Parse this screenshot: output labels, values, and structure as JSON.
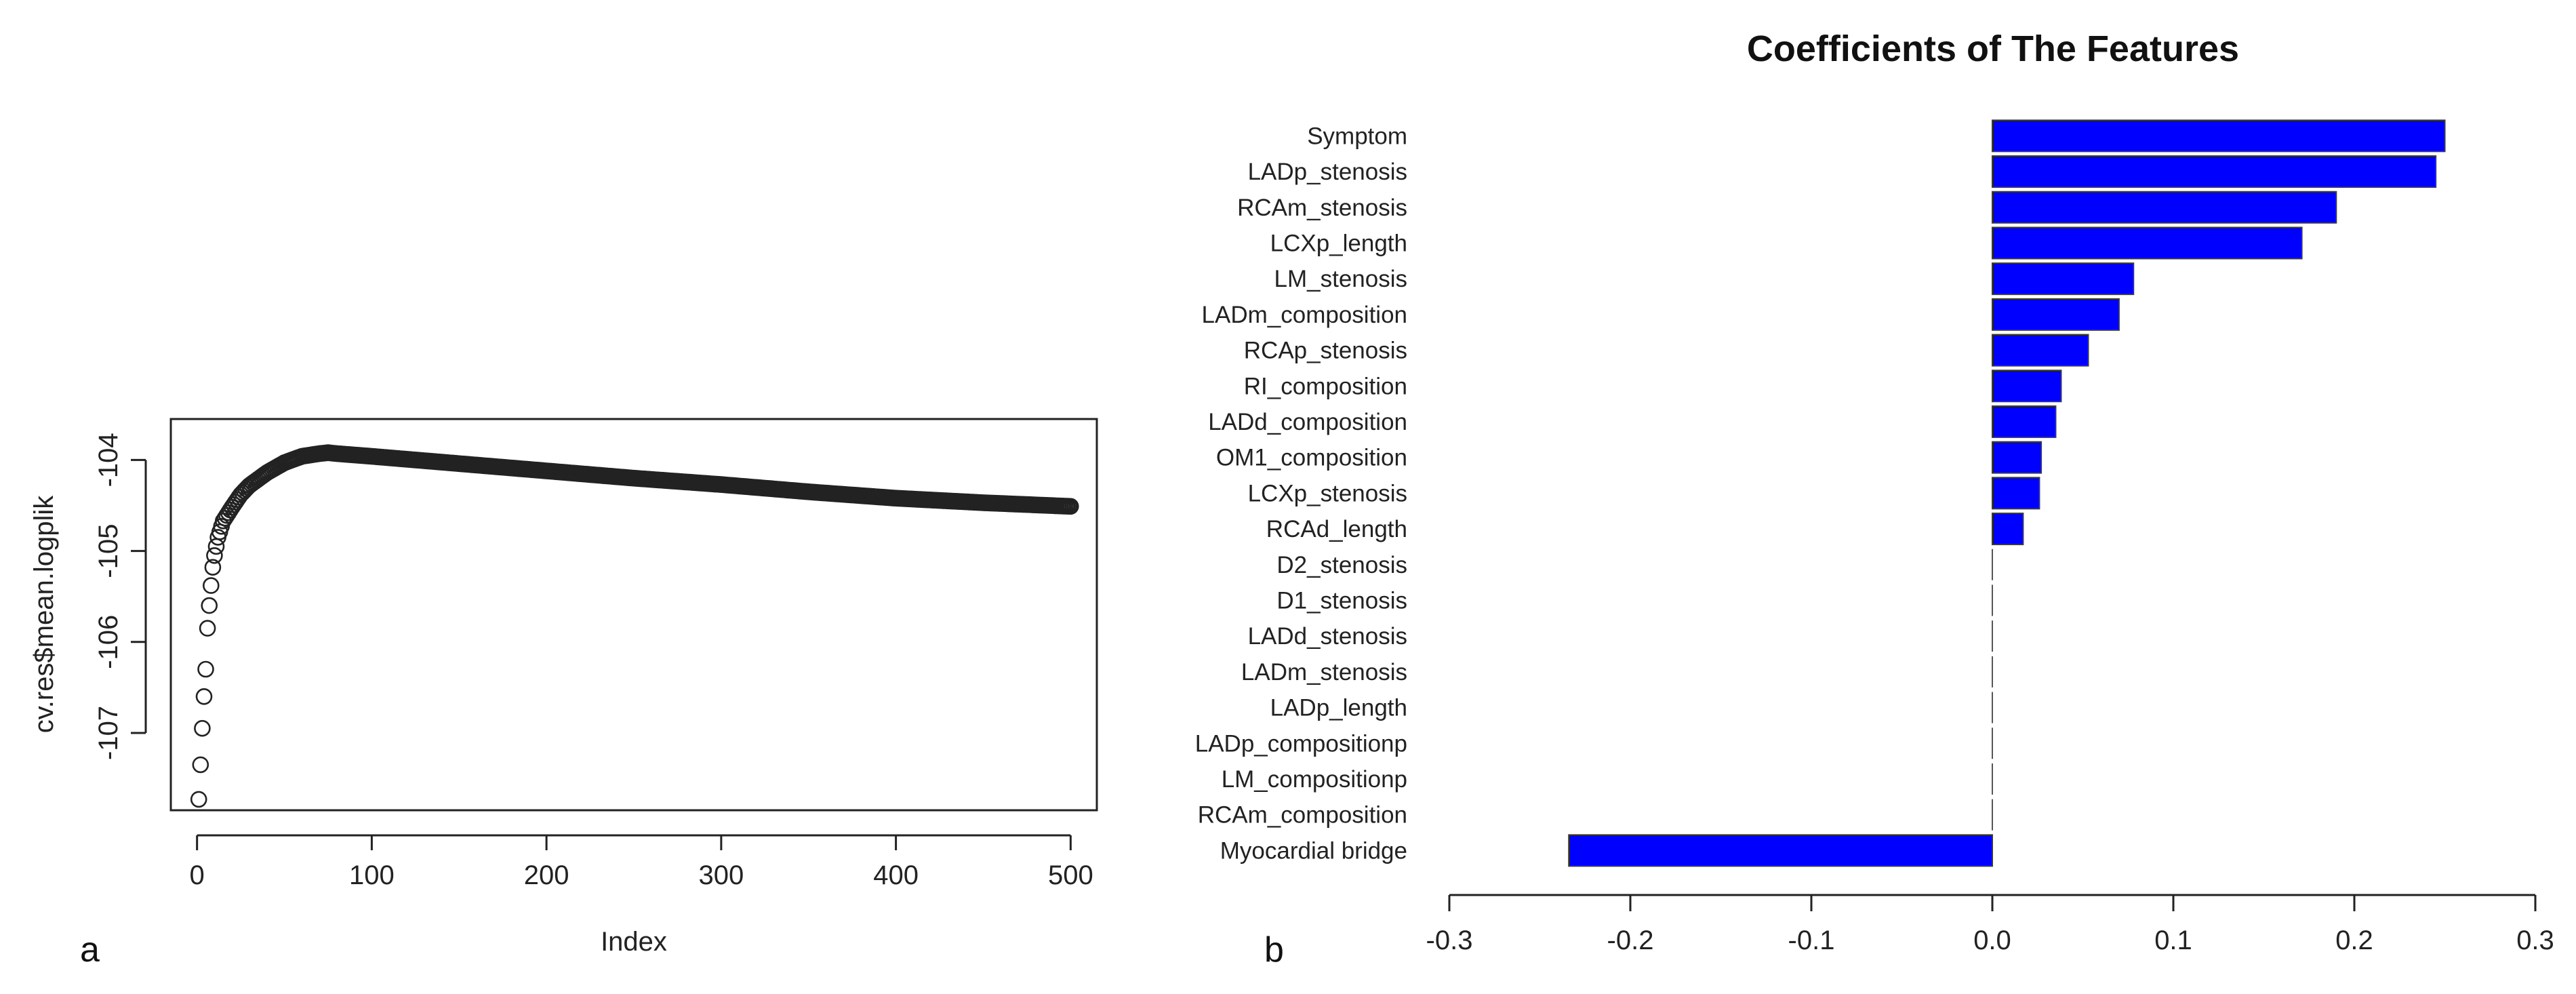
{
  "panels": {
    "a": "a",
    "b": "b"
  },
  "chart_data": [
    {
      "type": "scatter",
      "title": "",
      "xlabel": "Index",
      "ylabel": "cv.res$mean.logplik",
      "xlim": [
        -15,
        515
      ],
      "ylim": [
        -107.85,
        -103.55
      ],
      "xticks": [
        0,
        100,
        200,
        300,
        400,
        500
      ],
      "yticks": [
        -107,
        -106,
        -105,
        -104
      ],
      "curve": {
        "n_points": 500,
        "keypoints_index": [
          1,
          2,
          3,
          4,
          5,
          6,
          7,
          8,
          9,
          10,
          12,
          15,
          20,
          25,
          30,
          40,
          50,
          60,
          70,
          75,
          80,
          100,
          150,
          200,
          250,
          300,
          350,
          400,
          450,
          500
        ],
        "keypoints_value": [
          -107.73,
          -107.35,
          -106.95,
          -106.6,
          -106.3,
          -105.85,
          -105.6,
          -105.38,
          -105.18,
          -105.05,
          -104.85,
          -104.67,
          -104.52,
          -104.38,
          -104.28,
          -104.14,
          -104.03,
          -103.96,
          -103.93,
          -103.92,
          -103.93,
          -103.96,
          -104.04,
          -104.12,
          -104.2,
          -104.27,
          -104.35,
          -104.42,
          -104.47,
          -104.51
        ]
      },
      "marker": "open-circle",
      "color": "#222222"
    },
    {
      "type": "bar",
      "orientation": "horizontal",
      "title": "Coefficients of The Features",
      "xlabel": "",
      "ylabel": "",
      "xlim": [
        -0.3,
        0.3
      ],
      "xticks": [
        -0.3,
        -0.2,
        -0.1,
        0.0,
        0.1,
        0.2,
        0.3
      ],
      "xtick_labels": [
        "-0.3",
        "-0.2",
        "-0.1",
        "0.0",
        "0.1",
        "0.2",
        "0.3"
      ],
      "categories": [
        "Symptom",
        "LADp_stenosis",
        "RCAm_stenosis",
        "LCXp_length",
        "LM_stenosis",
        "LADm_composition",
        "RCAp_stenosis",
        "RI_composition",
        "LADd_composition",
        "OM1_composition",
        "LCXp_stenosis",
        "RCAd_length",
        "D2_stenosis",
        "D1_stenosis",
        "LADd_stenosis",
        "LADm_stenosis",
        "LADp_length",
        "LADp_compositionp",
        "LM_compositionp",
        "RCAm_composition",
        "Myocardial bridge"
      ],
      "values": [
        0.25,
        0.245,
        0.19,
        0.171,
        0.078,
        0.07,
        0.053,
        0.038,
        0.035,
        0.027,
        0.026,
        0.017,
        0,
        0,
        0,
        0,
        0,
        0,
        0,
        0,
        -0.234
      ],
      "bar_color": "#0000ff"
    }
  ]
}
